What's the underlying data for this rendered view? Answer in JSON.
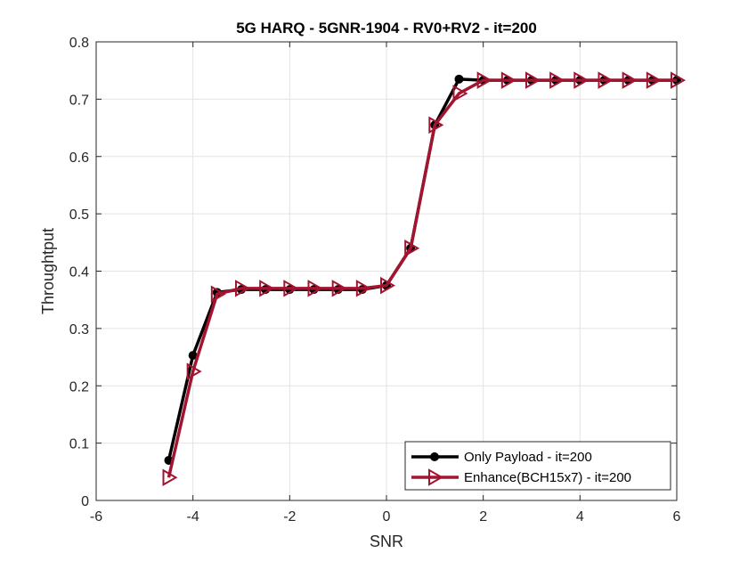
{
  "chart_data": {
    "type": "line",
    "title": "5G HARQ - 5GNR-1904 - RV0+RV2 - it=200",
    "xlabel": "SNR",
    "ylabel": "Throughtput",
    "xlim": [
      -6,
      6
    ],
    "ylim": [
      0,
      0.8
    ],
    "xticks": [
      -6,
      -4,
      -2,
      0,
      2,
      4,
      6
    ],
    "xtick_labels": [
      "-6",
      "-4",
      "-2",
      "0",
      "2",
      "4",
      "6"
    ],
    "yticks": [
      0,
      0.1,
      0.2,
      0.3,
      0.4,
      0.5,
      0.6,
      0.7,
      0.8
    ],
    "ytick_labels": [
      "0",
      "0.1",
      "0.2",
      "0.3",
      "0.4",
      "0.5",
      "0.6",
      "0.7",
      "0.8"
    ],
    "grid": true,
    "legend_position": "bottom-right",
    "series": [
      {
        "name": "Only Payload - it=200",
        "color": "#000000",
        "marker": "circle",
        "x": [
          -4.5,
          -4,
          -3.5,
          -3,
          -2.5,
          -2,
          -1.5,
          -1,
          -0.5,
          0,
          0.5,
          1,
          1.5,
          2,
          2.5,
          3,
          3.5,
          4,
          4.5,
          5,
          5.5,
          6
        ],
        "y": [
          0.07,
          0.253,
          0.363,
          0.368,
          0.368,
          0.368,
          0.368,
          0.368,
          0.368,
          0.375,
          0.44,
          0.655,
          0.735,
          0.733,
          0.733,
          0.733,
          0.733,
          0.733,
          0.733,
          0.733,
          0.733,
          0.733
        ]
      },
      {
        "name": "Enhance(BCH15x7) - it=200",
        "color": "#A2142F",
        "marker": "triangle-right",
        "x": [
          -4.5,
          -4,
          -3.5,
          -3,
          -2.5,
          -2,
          -1.5,
          -1,
          -0.5,
          0,
          0.5,
          1,
          1.5,
          2,
          2.5,
          3,
          3.5,
          4,
          4.5,
          5,
          5.5,
          6
        ],
        "y": [
          0.04,
          0.225,
          0.36,
          0.37,
          0.37,
          0.37,
          0.37,
          0.37,
          0.37,
          0.375,
          0.44,
          0.655,
          0.71,
          0.733,
          0.733,
          0.733,
          0.733,
          0.733,
          0.733,
          0.733,
          0.733,
          0.733
        ]
      }
    ]
  }
}
